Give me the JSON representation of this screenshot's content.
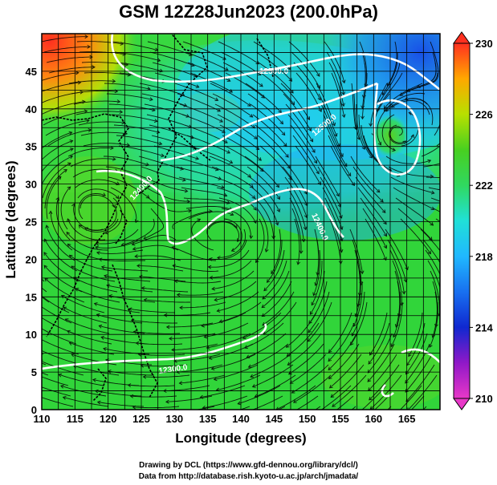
{
  "title": "GSM 12Z28Jun2023 (200.0hPa)",
  "map": {
    "xlabel": "Longitude (degrees)",
    "ylabel": "Latitude  (degrees)",
    "lon_range": [
      110,
      170
    ],
    "lat_range": [
      0,
      50
    ],
    "lon_ticks": [
      110,
      115,
      120,
      125,
      130,
      135,
      140,
      145,
      150,
      155,
      160,
      165
    ],
    "lat_ticks": [
      0,
      5,
      10,
      15,
      20,
      25,
      30,
      35,
      40,
      45
    ],
    "grid": true,
    "field": "temperature",
    "overlays": [
      "streamlines",
      "geopotential height contours"
    ]
  },
  "colorbar": {
    "min": 210,
    "max": 230,
    "tick_labels": [
      "210",
      "214",
      "218",
      "222",
      "226",
      "230"
    ],
    "colors": [
      "#e040c8",
      "#8010c0",
      "#1030d0",
      "#20a0ff",
      "#20e0d0",
      "#30d060",
      "#40d020",
      "#b0e000",
      "#ffa000",
      "#ff3020"
    ]
  },
  "contour_labels": [
    "12300.0",
    "12400.0",
    "12500.0",
    "12500.0",
    "12400.0",
    "12500.0",
    "12500.0"
  ],
  "credits": {
    "line1": "Drawing by DCL (https://www.gfd-dennou.org/library/dcl/)",
    "line2": "Data from http://database.rish.kyoto-u.ac.jp/arch/jmadata/"
  }
}
